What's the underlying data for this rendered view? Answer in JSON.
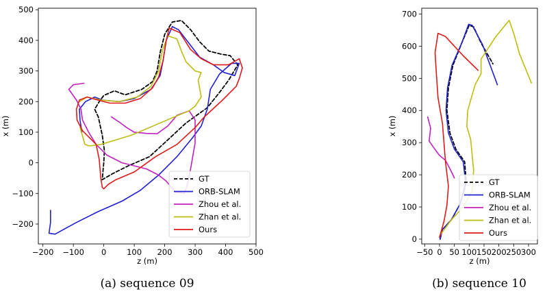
{
  "colors": {
    "GT": "#000000",
    "ORB-SLAM": "#1f1fd4",
    "Zhou et al.": "#c020c0",
    "Zhan et al.": "#bdbd0b",
    "Ours": "#e01818"
  },
  "chart_data": [
    {
      "type": "line",
      "caption": "(a) sequence 09",
      "xlabel": "z (m)",
      "ylabel": "x (m)",
      "xlim": [
        -215,
        500
      ],
      "ylim": [
        -265,
        505
      ],
      "xticks": [
        -200,
        -100,
        0,
        100,
        200,
        300,
        400,
        500
      ],
      "yticks": [
        -200,
        -100,
        0,
        100,
        200,
        300,
        400,
        500
      ],
      "xtick_labels": [
        "−200",
        "−100",
        "0",
        "100",
        "200",
        "300",
        "400",
        "500"
      ],
      "ytick_labels": [
        "−200",
        "−100",
        "0",
        "100",
        "200",
        "300",
        "400",
        "500"
      ],
      "grid": false,
      "legend": "lower-right",
      "series": [
        {
          "name": "GT",
          "dash": true,
          "points": [
            [
              0,
              0
            ],
            [
              -2,
              -20
            ],
            [
              -5,
              -55
            ],
            [
              30,
              -35
            ],
            [
              80,
              -10
            ],
            [
              150,
              20
            ],
            [
              205,
              70
            ],
            [
              270,
              130
            ],
            [
              340,
              180
            ],
            [
              380,
              230
            ],
            [
              410,
              270
            ],
            [
              440,
              320
            ],
            [
              415,
              350
            ],
            [
              385,
              355
            ],
            [
              345,
              365
            ],
            [
              315,
              395
            ],
            [
              285,
              435
            ],
            [
              255,
              465
            ],
            [
              225,
              460
            ],
            [
              200,
              420
            ],
            [
              185,
              360
            ],
            [
              175,
              300
            ],
            [
              160,
              265
            ],
            [
              125,
              240
            ],
            [
              70,
              222
            ],
            [
              35,
              235
            ],
            [
              0,
              220
            ],
            [
              -15,
              200
            ],
            [
              -30,
              175
            ],
            [
              -18,
              150
            ],
            [
              -5,
              90
            ],
            [
              2,
              40
            ],
            [
              0,
              0
            ]
          ]
        },
        {
          "name": "ORB-SLAM",
          "dash": false,
          "points": [
            [
              -175,
              -155
            ],
            [
              -175,
              -195
            ],
            [
              -180,
              -230
            ],
            [
              -160,
              -233
            ],
            [
              -90,
              -195
            ],
            [
              -20,
              -160
            ],
            [
              60,
              -125
            ],
            [
              120,
              -90
            ],
            [
              180,
              -40
            ],
            [
              240,
              20
            ],
            [
              290,
              80
            ],
            [
              320,
              120
            ],
            [
              340,
              175
            ],
            [
              350,
              240
            ],
            [
              380,
              290
            ],
            [
              420,
              325
            ],
            [
              445,
              325
            ],
            [
              430,
              285
            ],
            [
              395,
              295
            ],
            [
              360,
              320
            ],
            [
              315,
              345
            ],
            [
              280,
              390
            ],
            [
              245,
              435
            ],
            [
              225,
              445
            ],
            [
              205,
              400
            ],
            [
              195,
              335
            ],
            [
              185,
              285
            ],
            [
              155,
              240
            ],
            [
              100,
              210
            ],
            [
              50,
              200
            ],
            [
              -5,
              205
            ],
            [
              -30,
              215
            ],
            [
              -60,
              200
            ],
            [
              -80,
              175
            ],
            [
              -78,
              140
            ],
            [
              -72,
              100
            ]
          ]
        },
        {
          "name": "Zhou et al.",
          "dash": false,
          "points": [
            [
              -65,
              260
            ],
            [
              -100,
              255
            ],
            [
              -115,
              240
            ],
            [
              -90,
              205
            ],
            [
              -75,
              175
            ],
            [
              -70,
              140
            ],
            [
              -50,
              100
            ],
            [
              -25,
              60
            ],
            [
              10,
              25
            ],
            [
              60,
              0
            ],
            [
              140,
              -20
            ],
            [
              180,
              -40
            ],
            [
              205,
              -60
            ],
            [
              235,
              -95
            ],
            [
              265,
              -100
            ],
            [
              275,
              -70
            ],
            [
              285,
              -20
            ],
            [
              300,
              65
            ],
            [
              300,
              140
            ],
            [
              280,
              170
            ],
            [
              240,
              155
            ],
            [
              210,
              120
            ],
            [
              175,
              95
            ],
            [
              140,
              96
            ],
            [
              100,
              100
            ],
            [
              75,
              115
            ],
            [
              55,
              130
            ],
            [
              25,
              150
            ]
          ]
        },
        {
          "name": "Zhan et al.",
          "dash": false,
          "points": [
            [
              -78,
              115
            ],
            [
              -70,
              88
            ],
            [
              -62,
              60
            ],
            [
              -48,
              55
            ],
            [
              -10,
              60
            ],
            [
              40,
              75
            ],
            [
              90,
              90
            ],
            [
              150,
              115
            ],
            [
              220,
              145
            ],
            [
              280,
              170
            ],
            [
              300,
              185
            ],
            [
              320,
              215
            ],
            [
              310,
              270
            ],
            [
              320,
              295
            ],
            [
              300,
              300
            ],
            [
              270,
              330
            ],
            [
              255,
              365
            ],
            [
              240,
              405
            ],
            [
              210,
              415
            ],
            [
              192,
              365
            ],
            [
              180,
              300
            ],
            [
              155,
              250
            ],
            [
              110,
              215
            ],
            [
              50,
              200
            ],
            [
              -10,
              205
            ],
            [
              -55,
              215
            ],
            [
              -80,
              200
            ]
          ]
        },
        {
          "name": "Ours",
          "dash": false,
          "points": [
            [
              0,
              -85
            ],
            [
              15,
              -70
            ],
            [
              40,
              -55
            ],
            [
              100,
              -30
            ],
            [
              170,
              20
            ],
            [
              240,
              60
            ],
            [
              300,
              115
            ],
            [
              330,
              150
            ],
            [
              390,
              205
            ],
            [
              435,
              250
            ],
            [
              445,
              275
            ],
            [
              455,
              310
            ],
            [
              445,
              340
            ],
            [
              410,
              320
            ],
            [
              360,
              320
            ],
            [
              320,
              340
            ],
            [
              285,
              370
            ],
            [
              250,
              425
            ],
            [
              215,
              440
            ],
            [
              205,
              400
            ],
            [
              195,
              335
            ],
            [
              180,
              280
            ],
            [
              160,
              245
            ],
            [
              120,
              210
            ],
            [
              70,
              195
            ],
            [
              20,
              195
            ],
            [
              -20,
              205
            ],
            [
              -55,
              215
            ],
            [
              -80,
              205
            ],
            [
              -90,
              175
            ],
            [
              -88,
              140
            ],
            [
              -70,
              105
            ],
            [
              -45,
              80
            ],
            [
              -25,
              60
            ],
            [
              -15,
              10
            ],
            [
              -10,
              -50
            ],
            [
              -5,
              -80
            ],
            [
              0,
              -85
            ]
          ]
        }
      ]
    },
    {
      "type": "line",
      "caption": "(b) sequence 10",
      "xlabel": "z (m)",
      "ylabel": "x (m)",
      "xlim": [
        -60,
        330
      ],
      "ylim": [
        -15,
        718
      ],
      "xticks": [
        -50,
        0,
        50,
        100,
        150,
        200,
        250,
        300
      ],
      "yticks": [
        0,
        100,
        200,
        300,
        400,
        500,
        600,
        700
      ],
      "xtick_labels": [
        "−50",
        "0",
        "50",
        "100",
        "150",
        "200",
        "250",
        "300"
      ],
      "ytick_labels": [
        "0",
        "100",
        "200",
        "300",
        "400",
        "500",
        "600",
        "700"
      ],
      "grid": false,
      "legend": "lower-right",
      "series": [
        {
          "name": "GT",
          "dash": true,
          "points": [
            [
              2,
              0
            ],
            [
              10,
              30
            ],
            [
              40,
              60
            ],
            [
              70,
              110
            ],
            [
              90,
              175
            ],
            [
              85,
              240
            ],
            [
              55,
              280
            ],
            [
              35,
              330
            ],
            [
              25,
              400
            ],
            [
              30,
              470
            ],
            [
              45,
              540
            ],
            [
              75,
              610
            ],
            [
              100,
              665
            ],
            [
              115,
              660
            ],
            [
              140,
              610
            ],
            [
              180,
              545
            ]
          ]
        },
        {
          "name": "ORB-SLAM",
          "dash": false,
          "points": [
            [
              2,
              0
            ],
            [
              10,
              30
            ],
            [
              40,
              60
            ],
            [
              70,
              110
            ],
            [
              88,
              175
            ],
            [
              80,
              240
            ],
            [
              50,
              280
            ],
            [
              30,
              330
            ],
            [
              22,
              400
            ],
            [
              27,
              470
            ],
            [
              42,
              540
            ],
            [
              75,
              610
            ],
            [
              98,
              668
            ],
            [
              110,
              665
            ],
            [
              145,
              605
            ],
            [
              195,
              480
            ]
          ]
        },
        {
          "name": "Zhou et al.",
          "dash": false,
          "points": [
            [
              -40,
              380
            ],
            [
              -30,
              345
            ],
            [
              -35,
              305
            ],
            [
              -20,
              285
            ],
            [
              0,
              260
            ],
            [
              20,
              245
            ],
            [
              40,
              210
            ],
            [
              50,
              190
            ]
          ]
        },
        {
          "name": "Zhan et al.",
          "dash": false,
          "points": [
            [
              0,
              10
            ],
            [
              40,
              60
            ],
            [
              80,
              100
            ],
            [
              110,
              150
            ],
            [
              115,
              215
            ],
            [
              105,
              310
            ],
            [
              92,
              350
            ],
            [
              95,
              400
            ],
            [
              120,
              480
            ],
            [
              140,
              515
            ],
            [
              140,
              560
            ],
            [
              190,
              630
            ],
            [
              235,
              680
            ],
            [
              250,
              640
            ],
            [
              270,
              575
            ],
            [
              310,
              485
            ]
          ]
        },
        {
          "name": "Ours",
          "dash": false,
          "points": [
            [
              0,
              5
            ],
            [
              15,
              55
            ],
            [
              25,
              105
            ],
            [
              30,
              165
            ],
            [
              20,
              240
            ],
            [
              15,
              300
            ],
            [
              10,
              360
            ],
            [
              -5,
              440
            ],
            [
              -10,
              505
            ],
            [
              -15,
              580
            ],
            [
              -5,
              640
            ],
            [
              20,
              630
            ],
            [
              80,
              570
            ],
            [
              130,
              525
            ]
          ]
        }
      ]
    }
  ]
}
